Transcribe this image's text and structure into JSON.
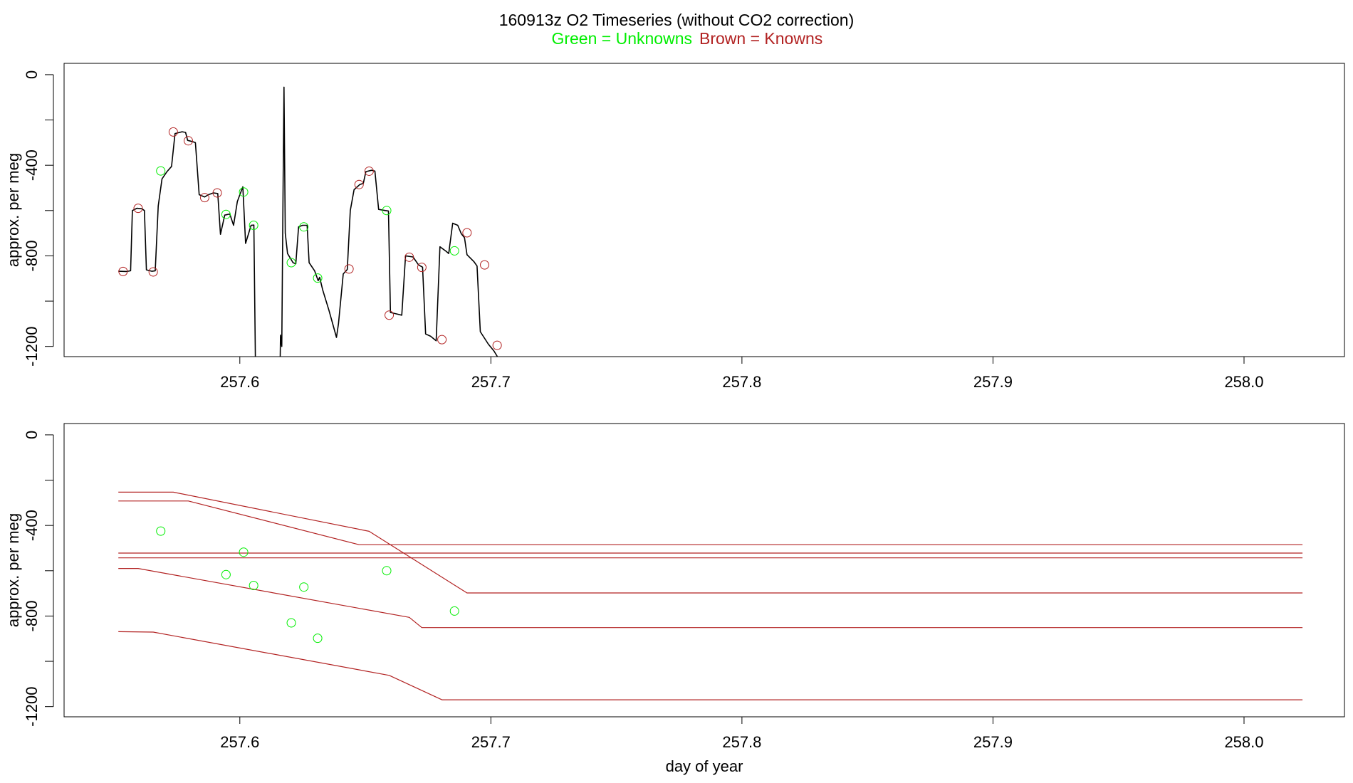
{
  "header": {
    "title": "160913z   O2 Timeseries (without CO2 correction)",
    "legend_unknowns": "Green = Unknowns",
    "legend_knowns": "Brown = Knowns"
  },
  "colors": {
    "unknowns": "#00ee00",
    "knowns": "#b22222",
    "series": "#000000",
    "axis": "#000000"
  },
  "chart_data": [
    {
      "type": "line",
      "title": "160913z   O2 Timeseries (without CO2 correction)",
      "xlabel": "",
      "ylabel": "approx. per meg",
      "xlim": [
        257.53,
        258.04
      ],
      "ylim": [
        -1245,
        50
      ],
      "x_ticks": [
        257.6,
        257.7,
        257.8,
        257.9,
        258.0
      ],
      "x_tick_labels": [
        "257.6",
        "257.7",
        "257.8",
        "257.9",
        "258.0"
      ],
      "y_ticks": [
        0,
        -200,
        -400,
        -600,
        -800,
        -1000,
        -1200
      ],
      "y_tick_labels": [
        "0",
        "",
        "-400",
        "",
        "-800",
        "",
        "-1200"
      ],
      "grid": false,
      "series": [
        {
          "color": "#000000",
          "segments": [
            [
              [
                257.5516,
                -868
              ],
              [
                257.555,
                -869
              ],
              [
                257.5565,
                -866
              ],
              [
                257.5572,
                -600
              ],
              [
                257.559,
                -590
              ],
              [
                257.561,
                -592
              ],
              [
                257.562,
                -600
              ],
              [
                257.5628,
                -862
              ],
              [
                257.565,
                -868
              ],
              [
                257.5663,
                -866
              ],
              [
                257.5675,
                -580
              ],
              [
                257.569,
                -460
              ],
              [
                257.571,
                -428
              ],
              [
                257.5728,
                -405
              ],
              [
                257.5742,
                -260
              ],
              [
                257.577,
                -252
              ],
              [
                257.5784,
                -255
              ],
              [
                257.5792,
                -290
              ],
              [
                257.581,
                -295
              ],
              [
                257.5823,
                -300
              ],
              [
                257.5838,
                -530
              ],
              [
                257.586,
                -540
              ],
              [
                257.5875,
                -530
              ],
              [
                257.5895,
                -522
              ],
              [
                257.5912,
                -525
              ],
              [
                257.5923,
                -705
              ],
              [
                257.594,
                -620
              ],
              [
                257.596,
                -615
              ],
              [
                257.5975,
                -665
              ],
              [
                257.599,
                -560
              ],
              [
                257.6012,
                -495
              ],
              [
                257.6023,
                -745
              ],
              [
                257.6045,
                -665
              ],
              [
                257.6056,
                -664
              ],
              [
                257.6062,
                -1245
              ]
            ],
            [
              [
                257.6161,
                -1245
              ],
              [
                257.6162,
                -1150
              ],
              [
                257.6167,
                -1200
              ],
              [
                257.6172,
                -550
              ],
              [
                257.6176,
                -55
              ],
              [
                257.6181,
                -700
              ],
              [
                257.619,
                -790
              ],
              [
                257.6212,
                -830
              ],
              [
                257.6223,
                -835
              ],
              [
                257.6234,
                -672
              ],
              [
                257.625,
                -665
              ],
              [
                257.6268,
                -665
              ],
              [
                257.6276,
                -830
              ],
              [
                257.6298,
                -866
              ],
              [
                257.6312,
                -910
              ],
              [
                257.6318,
                -895
              ],
              [
                257.633,
                -950
              ],
              [
                257.6355,
                -1040
              ],
              [
                257.637,
                -1100
              ],
              [
                257.6385,
                -1160
              ],
              [
                257.6393,
                -1100
              ],
              [
                257.6412,
                -880
              ],
              [
                257.6428,
                -860
              ],
              [
                257.644,
                -600
              ],
              [
                257.6455,
                -508
              ],
              [
                257.6468,
                -495
              ],
              [
                257.6478,
                -485
              ],
              [
                257.6492,
                -480
              ],
              [
                257.6502,
                -428
              ],
              [
                257.6525,
                -422
              ],
              [
                257.6538,
                -426
              ],
              [
                257.6553,
                -595
              ],
              [
                257.658,
                -600
              ],
              [
                257.6592,
                -602
              ],
              [
                257.66,
                -1050
              ],
              [
                257.663,
                -1058
              ],
              [
                257.6645,
                -1062
              ],
              [
                257.666,
                -800
              ],
              [
                257.669,
                -805
              ],
              [
                257.6712,
                -840
              ],
              [
                257.6728,
                -850
              ],
              [
                257.674,
                -1145
              ],
              [
                257.676,
                -1155
              ],
              [
                257.6782,
                -1175
              ],
              [
                257.6797,
                -760
              ],
              [
                257.6822,
                -780
              ],
              [
                257.6832,
                -790
              ],
              [
                257.6848,
                -656
              ],
              [
                257.6868,
                -665
              ],
              [
                257.6882,
                -702
              ],
              [
                257.6895,
                -720
              ],
              [
                257.6905,
                -795
              ],
              [
                257.6932,
                -825
              ],
              [
                257.6945,
                -845
              ],
              [
                257.6958,
                -1135
              ],
              [
                257.699,
                -1190
              ],
              [
                257.7012,
                -1220
              ],
              [
                257.7026,
                -1245
              ]
            ]
          ]
        }
      ],
      "knowns_markers": [
        [
          257.5535,
          -869
        ],
        [
          257.5595,
          -590
        ],
        [
          257.5655,
          -871
        ],
        [
          257.5735,
          -253
        ],
        [
          257.5795,
          -292
        ],
        [
          257.586,
          -543
        ],
        [
          257.591,
          -522
        ],
        [
          257.6435,
          -858
        ],
        [
          257.6475,
          -485
        ],
        [
          257.6515,
          -426
        ],
        [
          257.6595,
          -1062
        ],
        [
          257.6675,
          -806
        ],
        [
          257.6725,
          -851
        ],
        [
          257.6805,
          -1170
        ],
        [
          257.6905,
          -698
        ],
        [
          257.6975,
          -840
        ],
        [
          257.7025,
          -1195
        ]
      ],
      "unknowns_markers": [
        [
          257.5685,
          -425
        ],
        [
          257.5945,
          -617
        ],
        [
          257.6015,
          -518
        ],
        [
          257.6055,
          -665
        ],
        [
          257.6255,
          -672
        ],
        [
          257.6205,
          -830
        ],
        [
          257.631,
          -898
        ],
        [
          257.6585,
          -600
        ],
        [
          257.6855,
          -778
        ]
      ]
    },
    {
      "type": "line",
      "title": "",
      "xlabel": "day of year",
      "ylabel": "approx. per meg",
      "xlim": [
        257.53,
        258.04
      ],
      "ylim": [
        -1245,
        50
      ],
      "x_ticks": [
        257.6,
        257.7,
        257.8,
        257.9,
        258.0
      ],
      "x_tick_labels": [
        "257.6",
        "257.7",
        "257.8",
        "257.9",
        "258.0"
      ],
      "y_ticks": [
        0,
        -200,
        -400,
        -600,
        -800,
        -1000,
        -1200
      ],
      "y_tick_labels": [
        "0",
        "",
        "-400",
        "",
        "-800",
        "",
        "-1200"
      ],
      "grid": false,
      "series": [
        {
          "color": "#b22222",
          "points": [
            [
              257.5516,
              -253
            ],
            [
              257.5735,
              -253
            ],
            [
              257.6515,
              -426
            ],
            [
              257.6905,
              -698
            ],
            [
              258.0233,
              -698
            ]
          ]
        },
        {
          "color": "#b22222",
          "points": [
            [
              257.5516,
              -292
            ],
            [
              257.5795,
              -292
            ],
            [
              257.6475,
              -485
            ],
            [
              258.0233,
              -485
            ]
          ]
        },
        {
          "color": "#b22222",
          "points": [
            [
              257.5516,
              -522
            ],
            [
              258.0233,
              -522
            ]
          ]
        },
        {
          "color": "#b22222",
          "points": [
            [
              257.5516,
              -543
            ],
            [
              258.0233,
              -543
            ]
          ]
        },
        {
          "color": "#b22222",
          "points": [
            [
              257.5516,
              -590
            ],
            [
              257.5595,
              -590
            ],
            [
              257.6675,
              -806
            ],
            [
              257.6725,
              -851
            ],
            [
              258.0233,
              -851
            ]
          ]
        },
        {
          "color": "#b22222",
          "points": [
            [
              257.5516,
              -869
            ],
            [
              257.5655,
              -871
            ],
            [
              257.6595,
              -1062
            ],
            [
              257.6805,
              -1170
            ],
            [
              258.0233,
              -1170
            ]
          ]
        }
      ],
      "unknowns_markers": [
        [
          257.5685,
          -425
        ],
        [
          257.5945,
          -617
        ],
        [
          257.6015,
          -518
        ],
        [
          257.6055,
          -665
        ],
        [
          257.6255,
          -672
        ],
        [
          257.6205,
          -830
        ],
        [
          257.631,
          -898
        ],
        [
          257.6585,
          -600
        ],
        [
          257.6855,
          -778
        ]
      ]
    }
  ]
}
